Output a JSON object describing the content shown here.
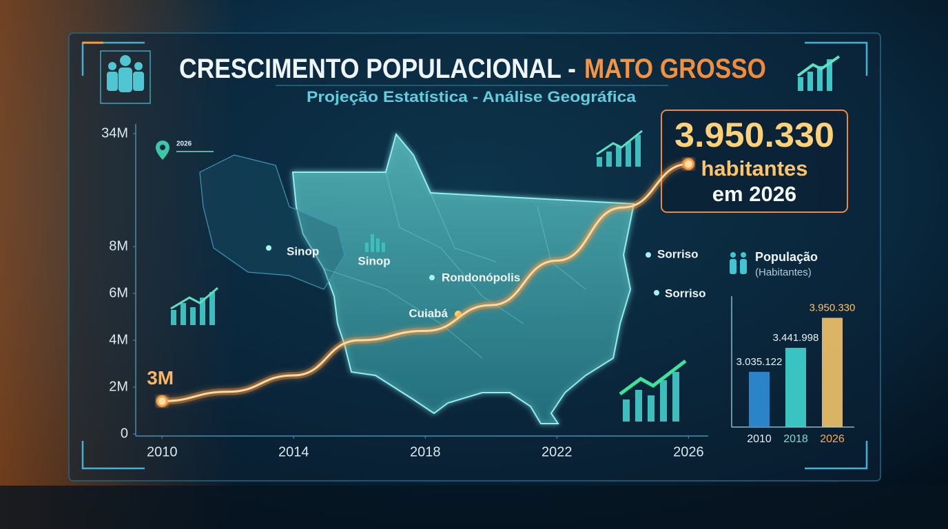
{
  "header": {
    "title_main": "CRESCIMENTO POPULACIONAL -",
    "title_accent": "MATO GROSSO",
    "subtitle": "Projeção Estatística - Análise Geográfica"
  },
  "callout": {
    "value": "3.950.330",
    "line1": "habitantes",
    "line2": "em 2026"
  },
  "map_labels": {
    "pin_year": "2026",
    "places": [
      "Sinop",
      "Sinop",
      "Rondonópolis",
      "Cuiabá",
      "Sorriso",
      "Sorriso"
    ]
  },
  "chart_data": [
    {
      "type": "line",
      "x": [
        2010,
        2012,
        2014,
        2016,
        2018,
        2020,
        2022,
        2024,
        2026
      ],
      "values": [
        1400000,
        1800000,
        2500000,
        4000000,
        4400000,
        5500000,
        7400000,
        17000000,
        27000000
      ],
      "color": "#ff9a3c",
      "annotation": "3M",
      "xlim": [
        2009.2,
        2026.6
      ],
      "xticks": [
        2010,
        2014,
        2018,
        2022,
        2026
      ],
      "ylim": [
        0,
        34000000
      ],
      "yticks": [
        0,
        {
          "value": 2000000,
          "label": "2M"
        },
        {
          "value": 4000000,
          "label": "4M"
        },
        {
          "value": 6000000,
          "label": "6M"
        },
        {
          "value": 8000000,
          "label": "8M"
        },
        {
          "value": 34000000,
          "label": "34M"
        }
      ]
    },
    {
      "type": "bar",
      "title": "População",
      "subtitle": "(Habitantes)",
      "categories": [
        "2010",
        "2018",
        "2026"
      ],
      "values": [
        3035122,
        3441998,
        3950330
      ],
      "value_labels": [
        "3.035.122",
        "3.441.998",
        "3.950.330"
      ],
      "colors": [
        "#2f8fd8",
        "#3fd6d0",
        "#f2c46a"
      ],
      "label_colors": [
        "#e8f2f8",
        "#6fe3da",
        "#ffab55"
      ],
      "ylim": [
        2100000,
        4200000
      ]
    }
  ]
}
